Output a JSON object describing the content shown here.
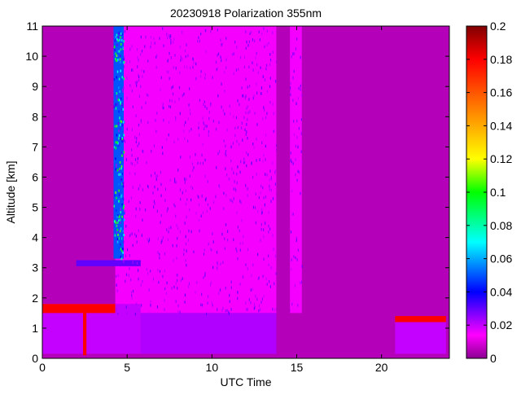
{
  "chart_data": {
    "type": "heatmap",
    "title": "20230918 Polarization 355nm",
    "xlabel": "UTC Time",
    "ylabel": "Altitude [km]",
    "xlim": [
      0,
      24
    ],
    "ylim": [
      0,
      11
    ],
    "x_ticks": [
      0,
      5,
      10,
      15,
      20
    ],
    "y_ticks": [
      0,
      1,
      2,
      3,
      4,
      5,
      6,
      7,
      8,
      9,
      10,
      11
    ],
    "colorbar": {
      "range": [
        0,
        0.2
      ],
      "ticks": [
        0,
        0.02,
        0.04,
        0.06,
        0.08,
        0.1,
        0.12,
        0.14,
        0.16,
        0.18,
        0.2
      ],
      "tick_labels": [
        "0",
        "0.02",
        "0.04",
        "0.06",
        "0.08",
        "0.1",
        "0.12",
        "0.14",
        "0.16",
        "0.18",
        "0.2"
      ],
      "colormap": "hsv"
    },
    "background_value": 0.005,
    "regions": [
      {
        "name": "noisy-signal",
        "x": [
          4.3,
          15.3
        ],
        "y": [
          1.5,
          11
        ],
        "value": 0.015
      },
      {
        "name": "cirrus-streak",
        "x": [
          4.2,
          4.8
        ],
        "y": [
          3.3,
          11
        ],
        "value": 0.05
      },
      {
        "name": "cloud-layer-3km",
        "x": [
          2.0,
          5.8
        ],
        "y": [
          3.05,
          3.25
        ],
        "value": 0.03
      },
      {
        "name": "boundary-layer-left",
        "x": [
          0,
          5.8
        ],
        "y": [
          0.15,
          1.8
        ],
        "value": 0.02
      },
      {
        "name": "boundary-layer-mid",
        "x": [
          5.8,
          13.8
        ],
        "y": [
          0.15,
          1.5
        ],
        "value": 0.022
      },
      {
        "name": "boundary-layer-right",
        "x": [
          20.8,
          23.8
        ],
        "y": [
          0.15,
          1.3
        ],
        "value": 0.02
      },
      {
        "name": "aerosol-top-left",
        "x": [
          0,
          4.3
        ],
        "y": [
          1.5,
          1.8
        ],
        "value": 0.18
      },
      {
        "name": "aerosol-top-right",
        "x": [
          20.8,
          23.8
        ],
        "y": [
          1.2,
          1.4
        ],
        "value": 0.18
      },
      {
        "name": "rain-column",
        "x": [
          2.4,
          2.6
        ],
        "y": [
          0.1,
          1.7
        ],
        "value": 0.18
      }
    ],
    "no_data_gaps": [
      {
        "x": [
          13.8,
          14.6
        ],
        "y": [
          0,
          11
        ]
      }
    ]
  }
}
